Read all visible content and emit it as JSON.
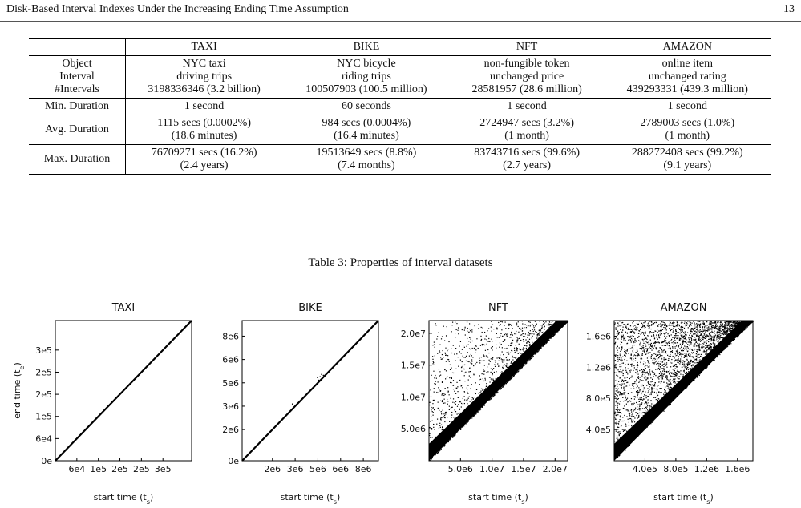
{
  "header": {
    "running_title": "Disk-Based Interval Indexes Under the Increasing Ending Time Assumption",
    "page_number": "13"
  },
  "table": {
    "columns": [
      "",
      "TAXI",
      "BIKE",
      "NFT",
      "AMAZON"
    ],
    "rows": [
      {
        "label": [
          "Object",
          "Interval",
          "#Intervals"
        ],
        "cells": [
          [
            "NYC taxi",
            "driving trips",
            "3198336346 (3.2 billion)"
          ],
          [
            "NYC bicycle",
            "riding trips",
            "100507903 (100.5 million)"
          ],
          [
            "non-fungible token",
            "unchanged price",
            "28581957 (28.6 million)"
          ],
          [
            "online item",
            "unchanged rating",
            "439293331 (439.3 million)"
          ]
        ]
      },
      {
        "label": [
          "Min. Duration"
        ],
        "cells": [
          [
            "1 second"
          ],
          [
            "60 seconds"
          ],
          [
            "1 second"
          ],
          [
            "1 second"
          ]
        ]
      },
      {
        "label": [
          "Avg. Duration"
        ],
        "cells": [
          [
            "1115 secs (0.0002%)",
            "(18.6 minutes)"
          ],
          [
            "984 secs (0.0004%)",
            "(16.4 minutes)"
          ],
          [
            "2724947 secs (3.2%)",
            "(1 month)"
          ],
          [
            "2789003 secs (1.0%)",
            "(1 month)"
          ]
        ]
      },
      {
        "label": [
          "Max. Duration"
        ],
        "cells": [
          [
            "76709271 secs (16.2%)",
            "(2.4 years)"
          ],
          [
            "19513649 secs (8.8%)",
            "(7.4 months)"
          ],
          [
            "83743716 secs (99.6%)",
            "(2.7 years)"
          ],
          [
            "288272408 secs (99.2%)",
            "(9.1 years)"
          ]
        ]
      }
    ],
    "caption": "Table 3: Properties of interval datasets"
  },
  "chart_data": [
    {
      "type": "scatter",
      "title": "TAXI",
      "xlabel": "start time (t<sub>s</sub>)",
      "ylabel": "end time (t<sub>e</sub>)",
      "xlim": [
        0,
        380000
      ],
      "ylim": [
        0,
        380000
      ],
      "xticks": [
        [
          60000,
          "6e4"
        ],
        [
          120000,
          "1e5"
        ],
        [
          180000,
          "2e5"
        ],
        [
          240000,
          "2e5"
        ],
        [
          300000,
          "3e5"
        ]
      ],
      "yticks": [
        [
          0,
          "0e"
        ],
        [
          60000,
          "6e4"
        ],
        [
          120000,
          "1e5"
        ],
        [
          180000,
          "2e5"
        ],
        [
          240000,
          "2e5"
        ],
        [
          300000,
          "3e5"
        ]
      ],
      "spread": 0.004,
      "density": 60,
      "outliers": 0,
      "note_series": "points lie along diagonal t_e ≈ t_s"
    },
    {
      "type": "scatter",
      "title": "BIKE",
      "xlabel": "start time (t<sub>s</sub>)",
      "ylabel": "",
      "xlim": [
        0,
        9000000
      ],
      "ylim": [
        0,
        9000000
      ],
      "xticks": [
        [
          2000000,
          "2e6"
        ],
        [
          3500000,
          "3e6"
        ],
        [
          5000000,
          "5e6"
        ],
        [
          6500000,
          "6e6"
        ],
        [
          8000000,
          "8e6"
        ]
      ],
      "yticks": [
        [
          0,
          "0e"
        ],
        [
          2000000,
          "2e6"
        ],
        [
          3500000,
          "3e6"
        ],
        [
          5000000,
          "5e6"
        ],
        [
          6500000,
          "6e6"
        ],
        [
          8000000,
          "8e6"
        ]
      ],
      "spread": 0.006,
      "density": 60,
      "outliers": 6
    },
    {
      "type": "scatter",
      "title": "NFT",
      "xlabel": "start time (t<sub>s</sub>)",
      "ylabel": "",
      "xlim": [
        0,
        22000000
      ],
      "ylim": [
        0,
        22000000
      ],
      "xticks": [
        [
          5000000,
          "5.0e6"
        ],
        [
          10000000,
          "1.0e7"
        ],
        [
          15000000,
          "1.5e7"
        ],
        [
          20000000,
          "2.0e7"
        ]
      ],
      "yticks": [
        [
          5000000,
          "5.0e6"
        ],
        [
          10000000,
          "1.0e7"
        ],
        [
          15000000,
          "1.5e7"
        ],
        [
          20000000,
          "2.0e7"
        ]
      ],
      "spread": 0.55,
      "density": 1700,
      "outliers": 0
    },
    {
      "type": "scatter",
      "title": "AMAZON",
      "xlabel": "start time (t<sub>s</sub>)",
      "ylabel": "",
      "xlim": [
        0,
        1800000
      ],
      "ylim": [
        0,
        1800000
      ],
      "xticks": [
        [
          400000,
          "4.0e5"
        ],
        [
          800000,
          "8.0e5"
        ],
        [
          1200000,
          "1.2e6"
        ],
        [
          1600000,
          "1.6e6"
        ]
      ],
      "yticks": [
        [
          400000,
          "4.0e5"
        ],
        [
          800000,
          "8.0e5"
        ],
        [
          1200000,
          "1.2e6"
        ],
        [
          1600000,
          "1.6e6"
        ]
      ],
      "spread": 1.0,
      "density": 3200,
      "outliers": 0
    }
  ]
}
